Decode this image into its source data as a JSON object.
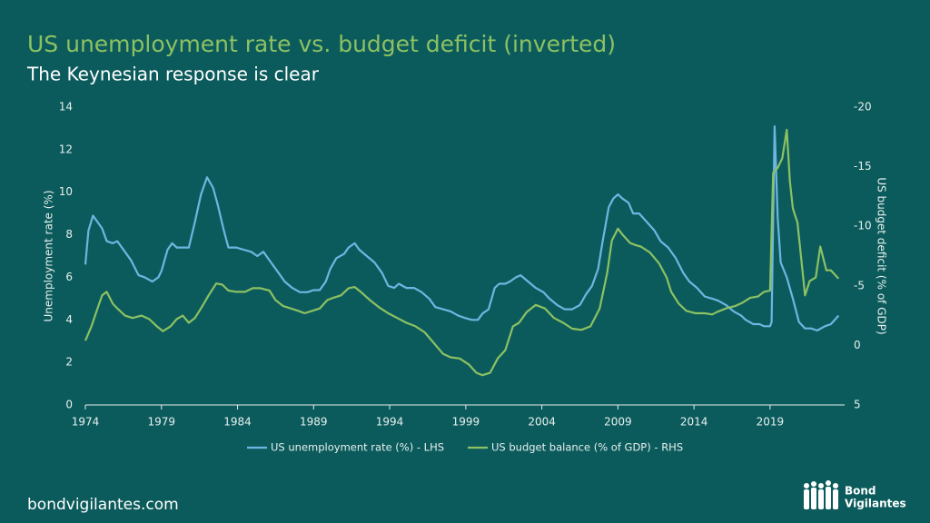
{
  "chart_data": {
    "type": "line",
    "title": "US unemployment rate vs. budget deficit (inverted)",
    "subtitle": "The Keynesian response is clear",
    "ylabel": "Unemployment rate (%)",
    "y2label": "US budget deficit (% of GDP)",
    "xlim": [
      1974,
      2023.9
    ],
    "xticks": [
      1974,
      1979,
      1984,
      1989,
      1994,
      1999,
      2004,
      2009,
      2014,
      2019
    ],
    "ylim": [
      0,
      14
    ],
    "yticks": [
      0,
      2,
      4,
      6,
      8,
      10,
      12,
      14
    ],
    "y2lim": [
      5,
      -20
    ],
    "y2ticks": [
      5,
      0,
      -5,
      -10,
      -15,
      -20
    ],
    "legend": "bottom",
    "series": [
      {
        "name": "US unemployment rate (%) - LHS",
        "color": "#6db6e2",
        "x": [
          1974.0,
          1974.2,
          1974.5,
          1974.8,
          1975.1,
          1975.4,
          1975.8,
          1976.1,
          1976.5,
          1977.0,
          1977.5,
          1977.9,
          1978.4,
          1978.8,
          1979.0,
          1979.4,
          1979.7,
          1980.0,
          1980.8,
          1981.2,
          1981.6,
          1982.0,
          1982.4,
          1982.7,
          1983.1,
          1983.4,
          1983.9,
          1984.4,
          1984.9,
          1985.3,
          1985.7,
          1986.2,
          1986.7,
          1987.1,
          1987.6,
          1988.1,
          1988.6,
          1989.0,
          1989.4,
          1989.8,
          1990.1,
          1990.5,
          1991.0,
          1991.3,
          1991.7,
          1992.0,
          1992.5,
          1993.0,
          1993.5,
          1993.9,
          1994.3,
          1994.6,
          1995.1,
          1995.6,
          1996.1,
          1996.6,
          1997.0,
          1997.5,
          1998.0,
          1998.5,
          1998.9,
          1999.4,
          1999.8,
          2000.1,
          2000.5,
          2000.9,
          2001.2,
          2001.6,
          2001.9,
          2002.3,
          2002.6,
          2003.1,
          2003.6,
          2004.1,
          2004.5,
          2005.0,
          2005.5,
          2006.0,
          2006.5,
          2006.9,
          2007.3,
          2007.7,
          2008.0,
          2008.4,
          2008.7,
          2009.0,
          2009.3,
          2009.7,
          2010.0,
          2010.4,
          2010.9,
          2011.4,
          2011.8,
          2012.3,
          2012.8,
          2013.3,
          2013.7,
          2014.2,
          2014.7,
          2015.2,
          2015.6,
          2016.1,
          2016.6,
          2017.1,
          2017.4,
          2017.9,
          2018.3,
          2018.6,
          2019.0,
          2019.1,
          2019.3,
          2019.5,
          2019.7,
          2020.1,
          2020.5,
          2020.9,
          2021.3,
          2021.7,
          2022.1,
          2022.6,
          2023.0,
          2023.5
        ],
        "values": [
          6.6,
          8.2,
          8.9,
          8.6,
          8.3,
          7.7,
          7.6,
          7.7,
          7.3,
          6.8,
          6.1,
          6.0,
          5.8,
          6.0,
          6.3,
          7.3,
          7.6,
          7.4,
          7.4,
          8.6,
          9.9,
          10.7,
          10.2,
          9.4,
          8.2,
          7.4,
          7.4,
          7.3,
          7.2,
          7.0,
          7.2,
          6.7,
          6.2,
          5.8,
          5.5,
          5.3,
          5.3,
          5.4,
          5.4,
          5.8,
          6.4,
          6.9,
          7.1,
          7.4,
          7.6,
          7.3,
          7.0,
          6.7,
          6.2,
          5.6,
          5.5,
          5.7,
          5.5,
          5.5,
          5.3,
          5.0,
          4.6,
          4.5,
          4.4,
          4.2,
          4.1,
          4.0,
          4.0,
          4.3,
          4.5,
          5.5,
          5.7,
          5.7,
          5.8,
          6.0,
          6.1,
          5.8,
          5.5,
          5.3,
          5.0,
          4.7,
          4.5,
          4.5,
          4.7,
          5.2,
          5.6,
          6.4,
          7.7,
          9.3,
          9.7,
          9.9,
          9.7,
          9.5,
          9.0,
          9.0,
          8.6,
          8.2,
          7.7,
          7.4,
          6.9,
          6.2,
          5.8,
          5.5,
          5.1,
          5.0,
          4.9,
          4.7,
          4.4,
          4.2,
          4.0,
          3.8,
          3.8,
          3.7,
          3.7,
          3.9,
          13.1,
          8.8,
          6.7,
          6.0,
          5.0,
          3.9,
          3.6,
          3.6,
          3.5,
          3.7,
          3.8,
          4.2
        ]
      },
      {
        "name": "US budget balance (% of GDP) - RHS",
        "color": "#8cc163",
        "axis": "y2",
        "x": [
          1974.0,
          1974.4,
          1974.8,
          1975.1,
          1975.4,
          1975.8,
          1976.1,
          1976.6,
          1977.1,
          1977.7,
          1978.2,
          1978.7,
          1979.1,
          1979.6,
          1980.0,
          1980.4,
          1980.8,
          1981.2,
          1981.6,
          1982.1,
          1982.6,
          1983.0,
          1983.4,
          1983.9,
          1984.5,
          1985.0,
          1985.5,
          1986.1,
          1986.5,
          1987.0,
          1987.5,
          1988.0,
          1988.4,
          1988.9,
          1989.4,
          1989.9,
          1990.3,
          1990.8,
          1991.3,
          1991.7,
          1992.1,
          1992.7,
          1993.3,
          1993.9,
          1994.5,
          1995.1,
          1995.7,
          1996.3,
          1996.9,
          1997.5,
          1998.0,
          1998.6,
          1999.2,
          1999.7,
          2000.1,
          2000.6,
          2001.1,
          2001.6,
          2002.1,
          2002.5,
          2003.0,
          2003.6,
          2004.2,
          2004.8,
          2005.4,
          2006.0,
          2006.6,
          2007.2,
          2007.8,
          2008.3,
          2008.6,
          2009.0,
          2009.3,
          2009.8,
          2010.2,
          2010.5,
          2011.1,
          2011.7,
          2012.2,
          2012.5,
          2013.0,
          2013.5,
          2014.1,
          2014.7,
          2015.2,
          2015.5,
          2016.1,
          2016.7,
          2017.2,
          2017.7,
          2018.2,
          2018.6,
          2019.0,
          2019.2,
          2019.5,
          2019.8,
          2020.1,
          2020.3,
          2020.5,
          2020.8,
          2021.3,
          2021.6,
          2022.0,
          2022.3,
          2022.7,
          2023.0,
          2023.5
        ],
        "values": [
          -0.4,
          -1.6,
          -3.1,
          -4.2,
          -4.5,
          -3.5,
          -3.1,
          -2.5,
          -2.3,
          -2.5,
          -2.2,
          -1.6,
          -1.2,
          -1.6,
          -2.2,
          -2.5,
          -1.9,
          -2.3,
          -3.1,
          -4.2,
          -5.2,
          -5.1,
          -4.6,
          -4.5,
          -4.5,
          -4.8,
          -4.8,
          -4.6,
          -3.8,
          -3.3,
          -3.1,
          -2.9,
          -2.7,
          -2.9,
          -3.1,
          -3.8,
          -4.0,
          -4.2,
          -4.8,
          -4.9,
          -4.5,
          -3.8,
          -3.2,
          -2.7,
          -2.3,
          -1.9,
          -1.6,
          -1.1,
          -0.2,
          0.7,
          1.0,
          1.1,
          1.6,
          2.3,
          2.5,
          2.3,
          1.1,
          0.4,
          -1.6,
          -1.9,
          -2.8,
          -3.4,
          -3.1,
          -2.3,
          -1.9,
          -1.4,
          -1.3,
          -1.6,
          -3.1,
          -6.1,
          -8.8,
          -9.8,
          -9.3,
          -8.6,
          -8.4,
          -8.3,
          -7.8,
          -6.9,
          -5.7,
          -4.5,
          -3.5,
          -2.9,
          -2.7,
          -2.7,
          -2.6,
          -2.8,
          -3.1,
          -3.3,
          -3.6,
          -4.0,
          -4.1,
          -4.5,
          -4.6,
          -14.5,
          -14.9,
          -15.7,
          -18.1,
          -13.8,
          -11.5,
          -10.3,
          -4.2,
          -5.4,
          -5.7,
          -8.3,
          -6.3,
          -6.3,
          -5.6
        ]
      }
    ]
  },
  "footer": "bondvigilantes.com",
  "logo": {
    "line1": "Bond",
    "line2": "Vigilantes"
  }
}
